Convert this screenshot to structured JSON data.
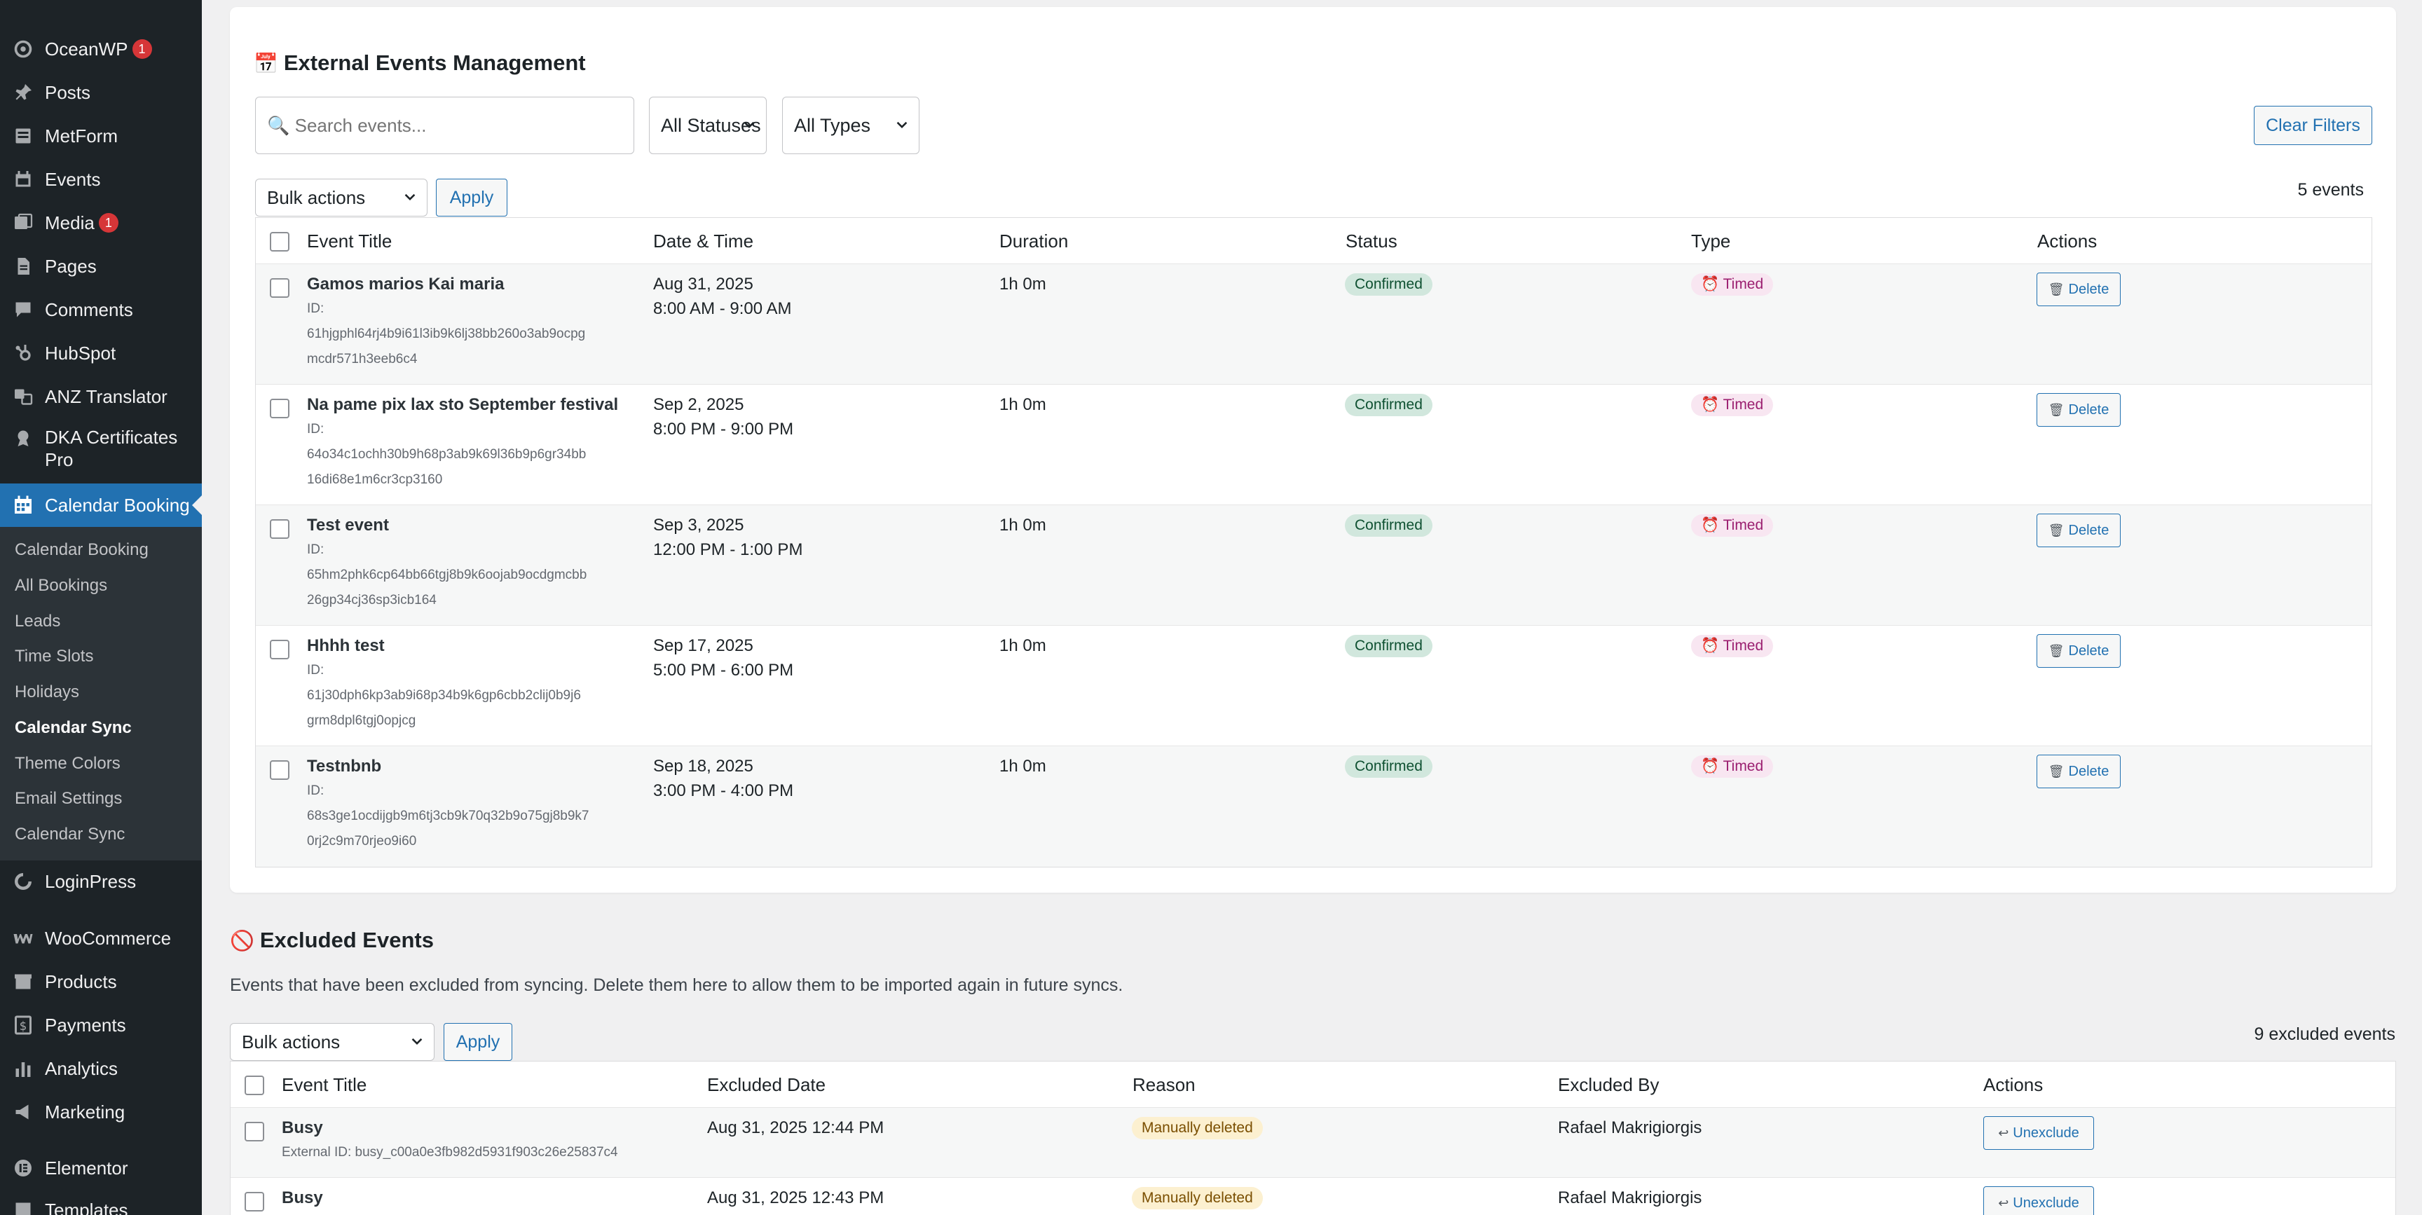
{
  "sidebar": {
    "items": [
      {
        "label": "OceanWP",
        "badge": "1",
        "icon": "oceanwp-icon"
      },
      {
        "label": "Posts",
        "icon": "pin-icon"
      },
      {
        "label": "MetForm",
        "icon": "form-icon"
      },
      {
        "label": "Events",
        "icon": "events-icon"
      },
      {
        "label": "Media",
        "badge": "1",
        "icon": "media-icon"
      },
      {
        "label": "Pages",
        "icon": "pages-icon"
      },
      {
        "label": "Comments",
        "icon": "comments-icon"
      },
      {
        "label": "HubSpot",
        "icon": "hubspot-icon"
      },
      {
        "label": "ANZ Translator",
        "icon": "translate-icon"
      },
      {
        "label": "DKA Certificates Pro",
        "icon": "certificate-icon"
      },
      {
        "label": "Calendar Booking",
        "icon": "calendar-icon"
      },
      {
        "label": "LoginPress",
        "icon": "loginpress-icon"
      },
      {
        "label": "WooCommerce",
        "icon": "woocommerce-icon"
      },
      {
        "label": "Products",
        "icon": "products-icon"
      },
      {
        "label": "Payments",
        "icon": "payments-icon"
      },
      {
        "label": "Analytics",
        "icon": "analytics-icon"
      },
      {
        "label": "Marketing",
        "icon": "marketing-icon"
      },
      {
        "label": "Elementor",
        "icon": "elementor-icon"
      },
      {
        "label": "Templates",
        "icon": "templates-icon"
      }
    ],
    "submenu": [
      "Calendar Booking",
      "All Bookings",
      "Leads",
      "Time Slots",
      "Holidays",
      "Calendar Sync",
      "Theme Colors",
      "Email Settings",
      "Calendar Sync"
    ]
  },
  "external": {
    "title": "External Events Management",
    "title_icon": "📅",
    "search_placeholder": "🔍 Search events...",
    "status_filter": "All Statuses",
    "type_filter": "All Types",
    "clear_filters": "Clear Filters",
    "bulk_actions": "Bulk actions",
    "apply": "Apply",
    "count": "5 events",
    "columns": [
      "Event Title",
      "Date & Time",
      "Duration",
      "Status",
      "Type",
      "Actions"
    ],
    "rows": [
      {
        "title": "Gamos marios Kai maria",
        "id_label": "ID:",
        "id_line1": "61hjgphl64rj4b9i61l3ib9k6lj38bb260o3ab9ocpg",
        "id_line2": "mcdr571h3eeb6c4",
        "date": "Aug 31, 2025",
        "time": "8:00 AM - 9:00 AM",
        "duration": "1h 0m",
        "status": "Confirmed",
        "type": "⏰ Timed",
        "action": "Delete"
      },
      {
        "title": "Na pame pix lax sto September festival",
        "id_label": "ID:",
        "id_line1": "64o34c1ochh30b9h68p3ab9k69l36b9p6gr34bb",
        "id_line2": "16di68e1m6cr3cp3160",
        "date": "Sep 2, 2025",
        "time": "8:00 PM - 9:00 PM",
        "duration": "1h 0m",
        "status": "Confirmed",
        "type": "⏰ Timed",
        "action": "Delete"
      },
      {
        "title": "Test event",
        "id_label": "ID:",
        "id_line1": "65hm2phk6cp64bb66tgj8b9k6oojab9ocdgmcbb",
        "id_line2": "26gp34cj36sp3icb164",
        "date": "Sep 3, 2025",
        "time": "12:00 PM - 1:00 PM",
        "duration": "1h 0m",
        "status": "Confirmed",
        "type": "⏰ Timed",
        "action": "Delete"
      },
      {
        "title": "Hhhh test",
        "id_label": "ID:",
        "id_line1": "61j30dph6kp3ab9i68p34b9k6gp6cbb2clij0b9j6",
        "id_line2": "grm8dpl6tgj0opjcg",
        "date": "Sep 17, 2025",
        "time": "5:00 PM - 6:00 PM",
        "duration": "1h 0m",
        "status": "Confirmed",
        "type": "⏰ Timed",
        "action": "Delete"
      },
      {
        "title": "Testnbnb",
        "id_label": "ID:",
        "id_line1": "68s3ge1ocdijgb9m6tj3cb9k70q32b9o75gj8b9k7",
        "id_line2": "0rj2c9m70rjeo9i60",
        "date": "Sep 18, 2025",
        "time": "3:00 PM - 4:00 PM",
        "duration": "1h 0m",
        "status": "Confirmed",
        "type": "⏰ Timed",
        "action": "Delete"
      }
    ]
  },
  "excluded": {
    "title": "Excluded Events",
    "title_icon": "🚫",
    "description": "Events that have been excluded from syncing. Delete them here to allow them to be imported again in future syncs.",
    "bulk_actions": "Bulk actions",
    "apply": "Apply",
    "count": "9 excluded events",
    "columns": [
      "Event Title",
      "Excluded Date",
      "Reason",
      "Excluded By",
      "Actions"
    ],
    "rows": [
      {
        "title": "Busy",
        "external_id": "External ID: busy_c00a0e3fb982d5931f903c26e25837c4",
        "date": "Aug 31, 2025 12:44 PM",
        "reason": "Manually deleted",
        "by": "Rafael Makrigiorgis",
        "action": "Unexclude"
      },
      {
        "title": "Busy",
        "external_id": "",
        "date": "Aug 31, 2025 12:43 PM",
        "reason": "Manually deleted",
        "by": "Rafael Makrigiorgis",
        "action": "Unexclude"
      }
    ]
  },
  "colors": {
    "sidebar_bg": "#1d2327",
    "accent": "#2271b1",
    "confirmed_bg": "#d1e7dd",
    "timed_bg": "#f8e6f1",
    "reason_bg": "#fcf0d0"
  }
}
